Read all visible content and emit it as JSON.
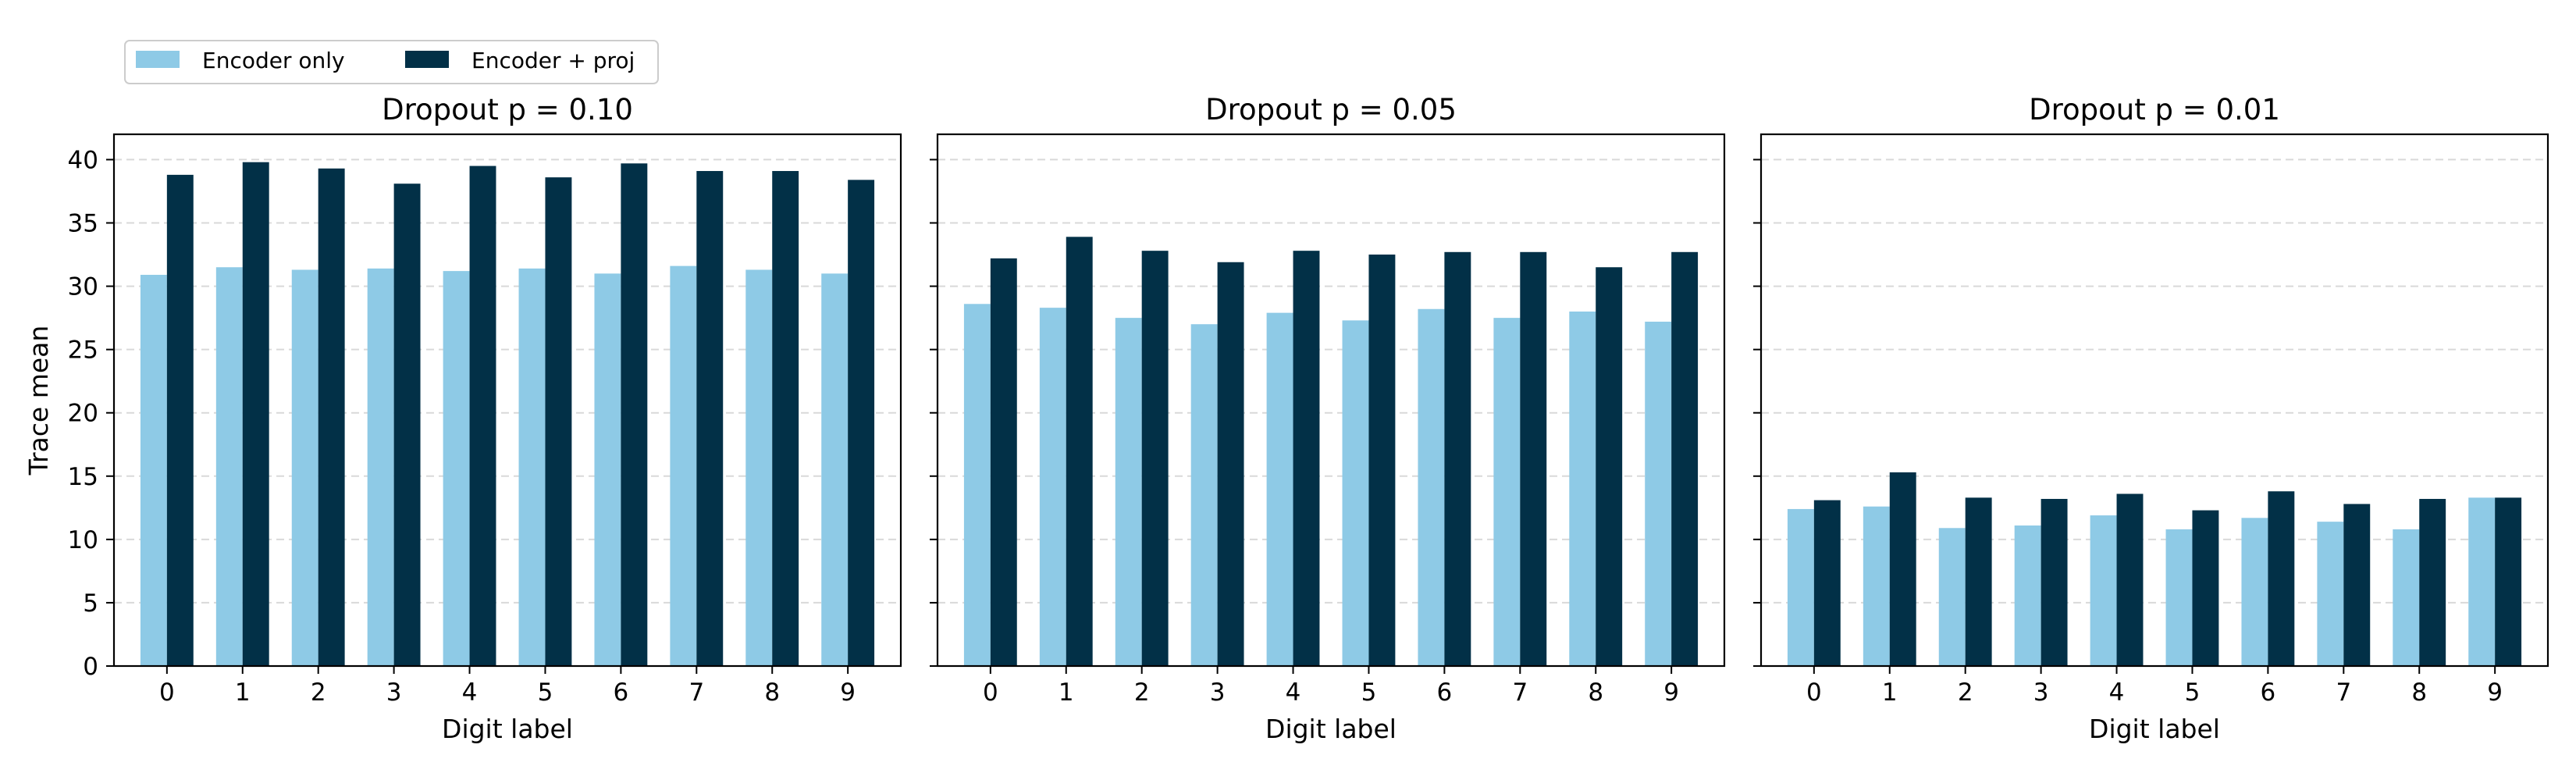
{
  "legend": {
    "placement": "top-left",
    "entries": [
      {
        "label": "Encoder only",
        "color": "#8ecae6"
      },
      {
        "label": "Encoder + proj",
        "color": "#023047"
      }
    ]
  },
  "chart_data": [
    {
      "type": "bar",
      "title": "Dropout p = 0.10",
      "xlabel": "Digit label",
      "ylabel": "Trace mean",
      "categories": [
        "0",
        "1",
        "2",
        "3",
        "4",
        "5",
        "6",
        "7",
        "8",
        "9"
      ],
      "ylim": [
        0,
        42
      ],
      "yticks": [
        0,
        5,
        10,
        15,
        20,
        25,
        30,
        35,
        40
      ],
      "grid": "y-dashed",
      "series": [
        {
          "name": "Encoder only",
          "color": "#8ecae6",
          "values": [
            30.9,
            31.5,
            31.3,
            31.4,
            31.2,
            31.4,
            31.0,
            31.6,
            31.3,
            31.0
          ]
        },
        {
          "name": "Encoder + proj",
          "color": "#023047",
          "values": [
            38.8,
            39.8,
            39.3,
            38.1,
            39.5,
            38.6,
            39.7,
            39.1,
            39.1,
            38.4
          ]
        }
      ]
    },
    {
      "type": "bar",
      "title": "Dropout p = 0.05",
      "xlabel": "Digit label",
      "ylabel": "",
      "categories": [
        "0",
        "1",
        "2",
        "3",
        "4",
        "5",
        "6",
        "7",
        "8",
        "9"
      ],
      "ylim": [
        0,
        42
      ],
      "yticks": [
        0,
        5,
        10,
        15,
        20,
        25,
        30,
        35,
        40
      ],
      "grid": "y-dashed",
      "series": [
        {
          "name": "Encoder only",
          "color": "#8ecae6",
          "values": [
            28.6,
            28.3,
            27.5,
            27.0,
            27.9,
            27.3,
            28.2,
            27.5,
            28.0,
            27.2
          ]
        },
        {
          "name": "Encoder + proj",
          "color": "#023047",
          "values": [
            32.2,
            33.9,
            32.8,
            31.9,
            32.8,
            32.5,
            32.7,
            32.7,
            31.5,
            32.7
          ]
        }
      ]
    },
    {
      "type": "bar",
      "title": "Dropout p = 0.01",
      "xlabel": "Digit label",
      "ylabel": "",
      "categories": [
        "0",
        "1",
        "2",
        "3",
        "4",
        "5",
        "6",
        "7",
        "8",
        "9"
      ],
      "ylim": [
        0,
        42
      ],
      "yticks": [
        0,
        5,
        10,
        15,
        20,
        25,
        30,
        35,
        40
      ],
      "grid": "y-dashed",
      "series": [
        {
          "name": "Encoder only",
          "color": "#8ecae6",
          "values": [
            12.4,
            12.6,
            10.9,
            11.1,
            11.9,
            10.8,
            11.7,
            11.4,
            10.8,
            13.3
          ]
        },
        {
          "name": "Encoder + proj",
          "color": "#023047",
          "values": [
            13.1,
            15.3,
            13.3,
            13.2,
            13.6,
            12.3,
            13.8,
            12.8,
            13.2,
            13.3
          ]
        }
      ]
    }
  ]
}
